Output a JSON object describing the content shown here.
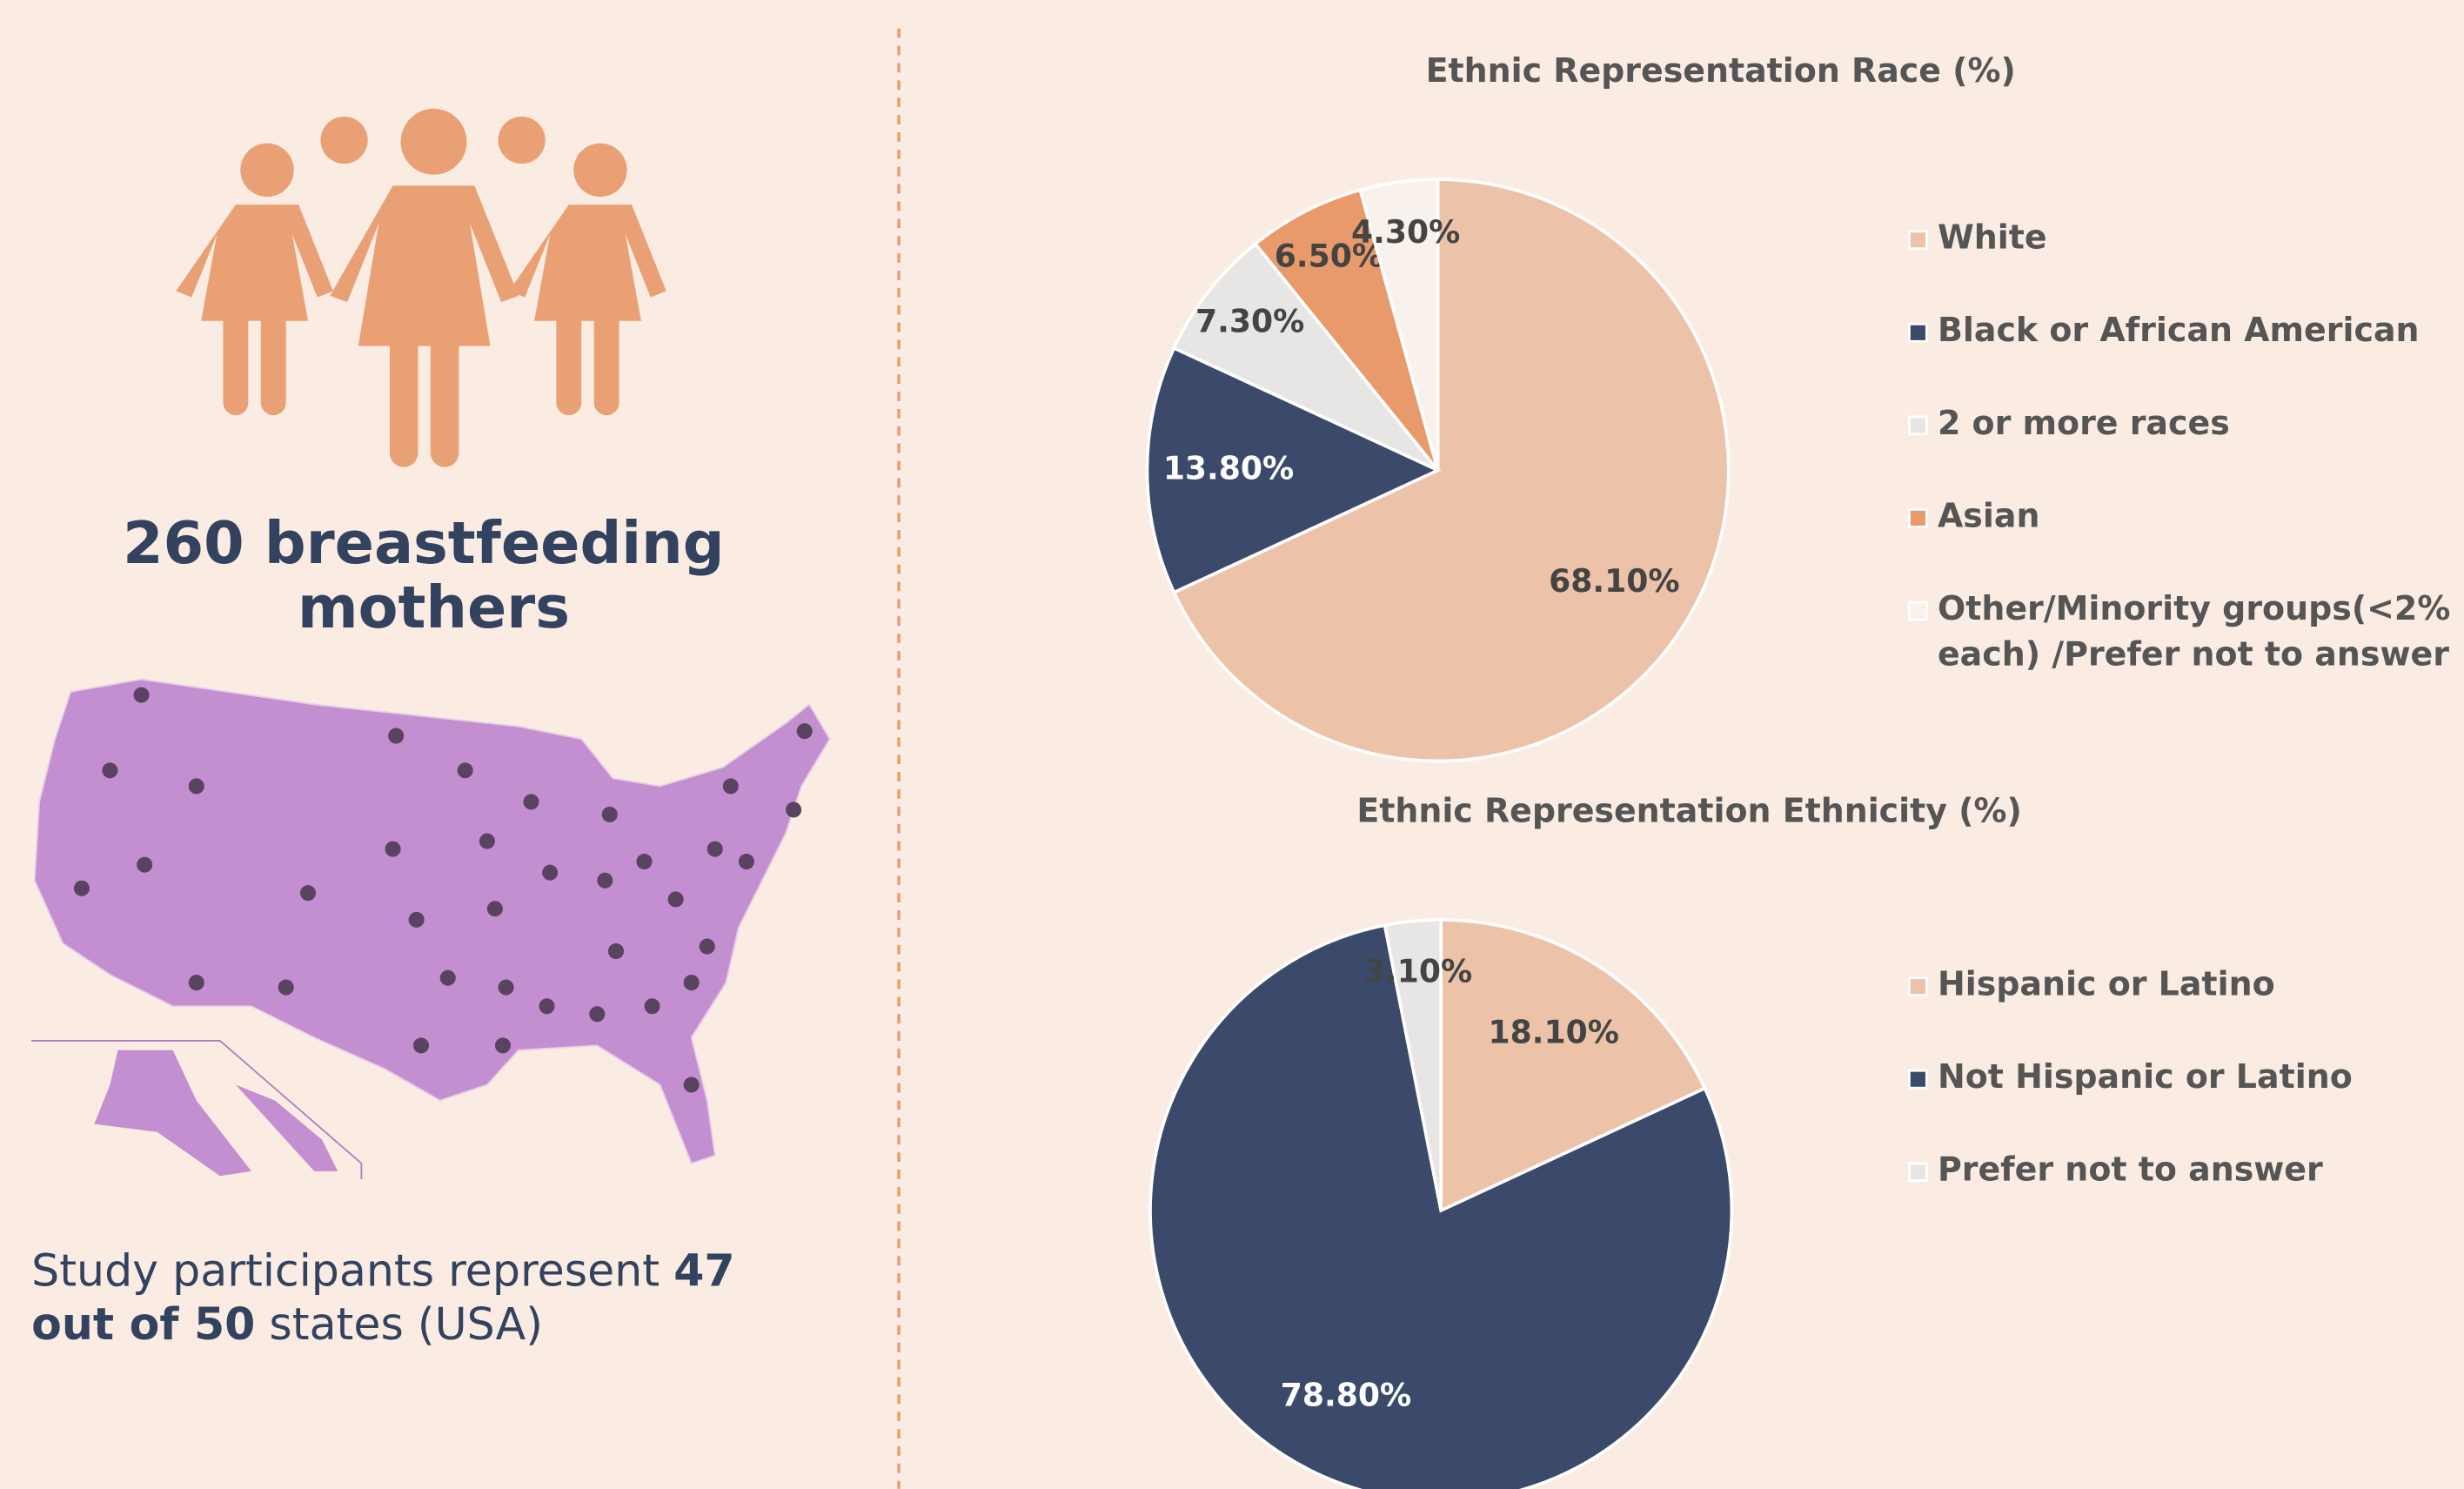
{
  "infographic": {
    "headline": [
      "260 breastfeeding",
      "mothers"
    ],
    "caption": [
      "Study participants represent ",
      "47",
      "out of 50",
      " states (USA)"
    ]
  },
  "chart_data": [
    {
      "type": "pie",
      "title": "Ethnic Representation Race (%)",
      "categories": [
        "White",
        "Black or African American",
        "2 or more races",
        "Asian",
        "Other/Minority groups(<2% each) /Prefer not to answer"
      ],
      "values": [
        68.1,
        13.8,
        7.3,
        6.5,
        4.3
      ],
      "value_labels": [
        "68.10%",
        "13.80%",
        "7.30%",
        "6.50%",
        "4.30%"
      ],
      "colors": [
        "#ecc3a8",
        "#3b4a6b",
        "#e8e6e4",
        "#e89a6a",
        "#f8f1ec"
      ]
    },
    {
      "type": "pie",
      "title": "Ethnic Representation Ethnicity (%)",
      "categories": [
        "Hispanic or Latino",
        "Not Hispanic or Latino",
        "Prefer not to answer"
      ],
      "values": [
        18.1,
        78.8,
        3.1
      ],
      "value_labels": [
        "18.10%",
        "78.80%",
        "3.10%"
      ],
      "colors": [
        "#ecc3a8",
        "#3b4a6b",
        "#e8e6e4"
      ]
    }
  ]
}
